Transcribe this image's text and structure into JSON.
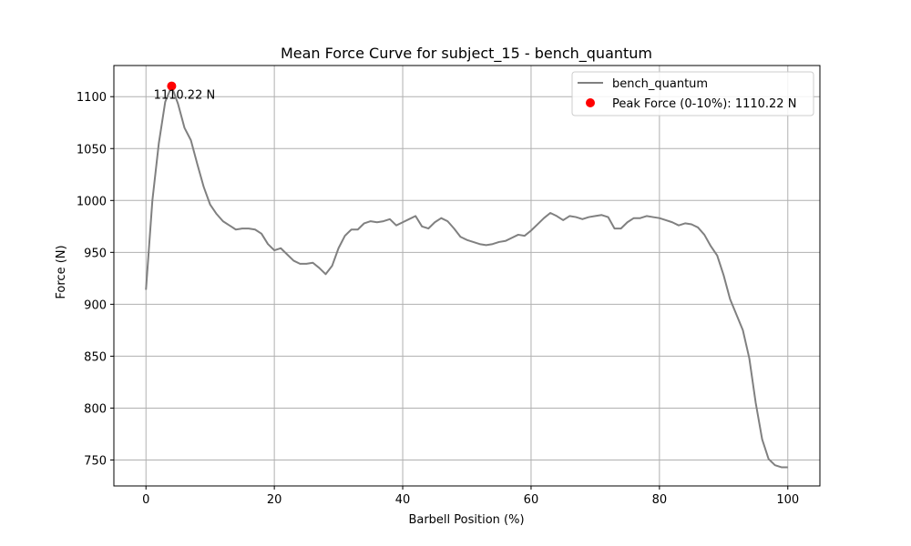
{
  "chart_data": {
    "type": "line",
    "title": "Mean Force Curve for subject_15 - bench_quantum",
    "xlabel": "Barbell Position (%)",
    "ylabel": "Force (N)",
    "xlim": [
      -5,
      105
    ],
    "ylim": [
      725,
      1130
    ],
    "xticks": [
      0,
      20,
      40,
      60,
      80,
      100
    ],
    "yticks": [
      750,
      800,
      850,
      900,
      950,
      1000,
      1050,
      1100
    ],
    "grid": true,
    "legend_position": "top-right",
    "series": [
      {
        "name": "bench_quantum",
        "color": "#808080",
        "x": [
          0,
          1,
          2,
          3,
          4,
          5,
          6,
          7,
          8,
          9,
          10,
          11,
          12,
          13,
          14,
          15,
          16,
          17,
          18,
          19,
          20,
          21,
          22,
          23,
          24,
          25,
          26,
          27,
          28,
          29,
          30,
          31,
          32,
          33,
          34,
          35,
          36,
          37,
          38,
          39,
          40,
          41,
          42,
          43,
          44,
          45,
          46,
          47,
          48,
          49,
          50,
          51,
          52,
          53,
          54,
          55,
          56,
          57,
          58,
          59,
          60,
          61,
          62,
          63,
          64,
          65,
          66,
          67,
          68,
          69,
          70,
          71,
          72,
          73,
          74,
          75,
          76,
          77,
          78,
          79,
          80,
          81,
          82,
          83,
          84,
          85,
          86,
          87,
          88,
          89,
          90,
          91,
          92,
          93,
          94,
          95,
          96,
          97,
          98,
          99,
          100
        ],
        "y": [
          914,
          1000,
          1055,
          1095,
          1110,
          1093,
          1070,
          1058,
          1035,
          1013,
          996,
          987,
          980,
          976,
          972,
          973,
          973,
          972,
          968,
          958,
          952,
          954,
          948,
          942,
          939,
          939,
          940,
          935,
          929,
          937,
          954,
          966,
          972,
          972,
          978,
          980,
          979,
          980,
          982,
          976,
          979,
          982,
          985,
          975,
          973,
          979,
          983,
          980,
          973,
          965,
          962,
          960,
          958,
          957,
          958,
          960,
          961,
          964,
          967,
          966,
          971,
          977,
          983,
          988,
          985,
          981,
          985,
          984,
          982,
          984,
          985,
          986,
          984,
          973,
          973,
          979,
          983,
          983,
          985,
          984,
          983,
          981,
          979,
          976,
          978,
          977,
          974,
          967,
          956,
          947,
          928,
          905,
          890,
          875,
          848,
          805,
          770,
          751,
          745,
          743,
          743
        ]
      }
    ],
    "peak": {
      "label": "Peak Force (0-10%): 1110.22 N",
      "annotation": "1110.22 N",
      "x": 4,
      "y": 1110.22,
      "color": "#ff0000"
    }
  }
}
